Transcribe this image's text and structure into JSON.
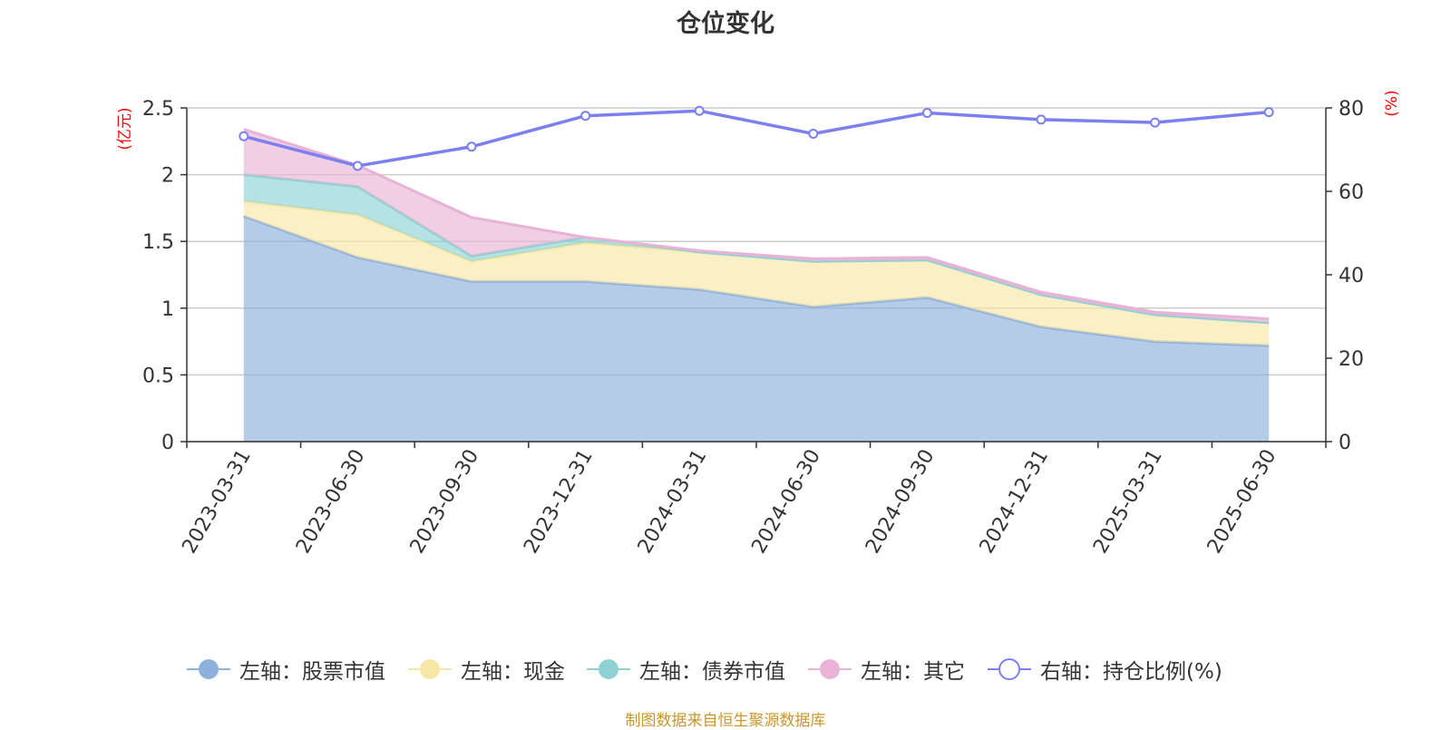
{
  "title": "仓位变化",
  "source_note": "制图数据来自恒生聚源数据库",
  "colors": {
    "stock": "#8eb0dd",
    "cash": "#f7e7a6",
    "bond": "#8ed2d3",
    "other": "#e8b3d6",
    "ratio": "#7b7ff0",
    "axis_unit": "#ff0000",
    "grid": "#cccccc",
    "axis": "#333333"
  },
  "chart_data": {
    "type": "area",
    "title": "仓位变化",
    "categories": [
      "2023-03-31",
      "2023-06-30",
      "2023-09-30",
      "2023-12-31",
      "2024-03-31",
      "2024-06-30",
      "2024-09-30",
      "2024-12-31",
      "2025-03-31",
      "2025-06-30"
    ],
    "left_axis": {
      "unit_label": "(亿元)",
      "ylim": [
        0,
        2.5
      ],
      "ticks": [
        "0",
        "0.5",
        "1",
        "1.5",
        "2",
        "2.5"
      ]
    },
    "right_axis": {
      "unit_label": "(%)",
      "ylim": [
        0,
        80
      ],
      "ticks": [
        "0",
        "20",
        "40",
        "60",
        "80"
      ]
    },
    "stacked": true,
    "grid": true,
    "legend_position": "bottom",
    "series": [
      {
        "name": "左轴：股票市值",
        "axis": "left",
        "values": [
          1.69,
          1.38,
          1.2,
          1.2,
          1.14,
          1.01,
          1.08,
          0.86,
          0.75,
          0.72
        ]
      },
      {
        "name": "左轴：现金",
        "axis": "left",
        "values": [
          0.11,
          0.32,
          0.15,
          0.29,
          0.28,
          0.34,
          0.28,
          0.24,
          0.2,
          0.17
        ]
      },
      {
        "name": "左轴：债券市值",
        "axis": "left",
        "values": [
          0.2,
          0.21,
          0.04,
          0.04,
          0.0,
          0.0,
          0.0,
          0.0,
          0.0,
          0.0
        ]
      },
      {
        "name": "左轴：其它",
        "axis": "left",
        "values": [
          0.34,
          0.16,
          0.29,
          0.0,
          0.01,
          0.02,
          0.02,
          0.02,
          0.02,
          0.03
        ]
      },
      {
        "name": "右轴：持仓比例(%)",
        "axis": "right",
        "type": "line",
        "values": [
          73.2,
          66.1,
          70.7,
          78.1,
          79.3,
          73.8,
          78.8,
          77.2,
          76.5,
          79.0
        ]
      }
    ]
  }
}
